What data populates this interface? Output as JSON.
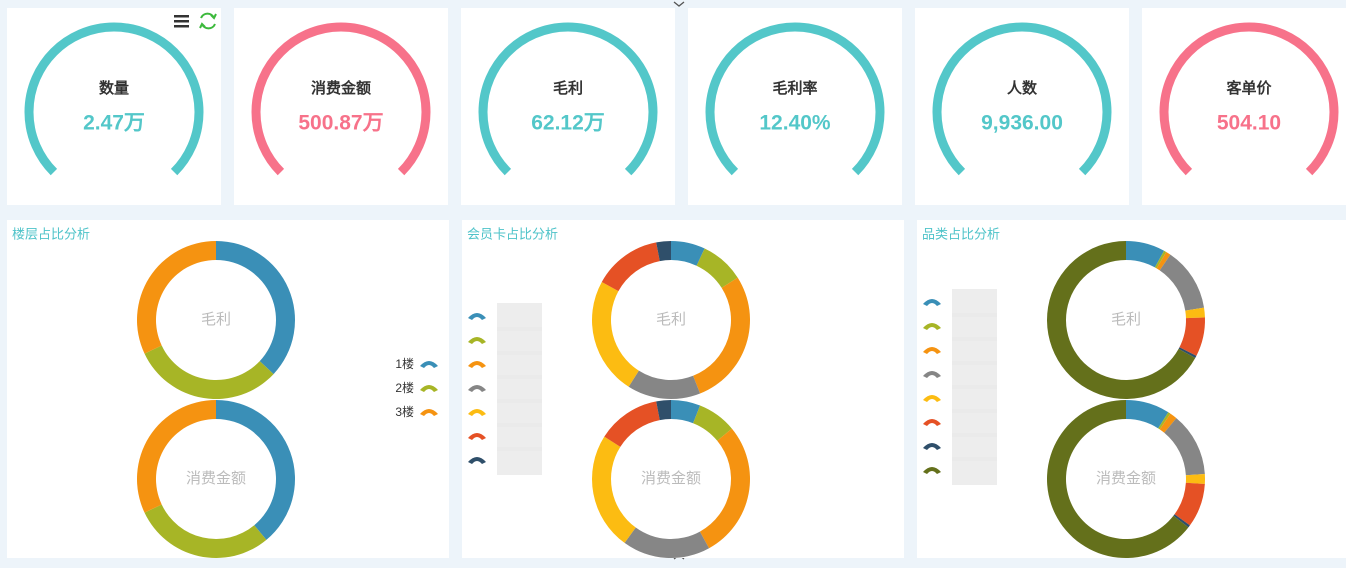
{
  "kpis": [
    {
      "label": "数量",
      "value": "2.47万",
      "color": "#53c7c9"
    },
    {
      "label": "消费金额",
      "value": "500.87万",
      "color": "#f7728a"
    },
    {
      "label": "毛利",
      "value": "62.12万",
      "color": "#53c7c9"
    },
    {
      "label": "毛利率",
      "value": "12.40%",
      "color": "#53c7c9"
    },
    {
      "label": "人数",
      "value": "9,936.00",
      "color": "#53c7c9"
    },
    {
      "label": "客单价",
      "value": "504.10",
      "color": "#f7728a"
    }
  ],
  "panels": [
    {
      "title": "楼层占比分析",
      "legend": [
        "1楼",
        "2楼",
        "3楼"
      ],
      "colors": [
        "#3a8fb7",
        "#a7b526",
        "#f59311"
      ],
      "donuts": [
        {
          "label": "毛利",
          "values": [
            37,
            31,
            32
          ]
        },
        {
          "label": "消费金额",
          "values": [
            39,
            29,
            32
          ]
        }
      ]
    },
    {
      "title": "会员卡占比分析",
      "colors": [
        "#3a8fb7",
        "#a7b526",
        "#f59311",
        "#868686",
        "#fcbc12",
        "#e55125",
        "#2f4f6a"
      ],
      "donuts": [
        {
          "label": "毛利",
          "values": [
            7,
            9,
            28,
            15,
            24,
            14,
            3
          ]
        },
        {
          "label": "消费金额",
          "values": [
            6,
            8,
            28,
            18,
            24,
            13,
            3
          ]
        }
      ]
    },
    {
      "title": "品类占比分析",
      "colors": [
        "#3a8fb7",
        "#a7b526",
        "#f59311",
        "#868686",
        "#fcbc12",
        "#e55125",
        "#2f4f6a",
        "#64701b"
      ],
      "donuts": [
        {
          "label": "毛利",
          "values": [
            8,
            0.5,
            1,
            13,
            2,
            8,
            0.5,
            67
          ]
        },
        {
          "label": "消费金额",
          "values": [
            9,
            0.5,
            1.5,
            13,
            2,
            9,
            0.5,
            64.5
          ]
        }
      ]
    }
  ]
}
